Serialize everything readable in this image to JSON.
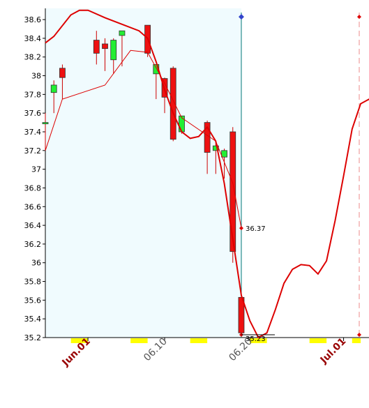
{
  "chart_data": {
    "type": "candlestick",
    "y_ticks": [
      "38.6",
      "38.4",
      "38.2",
      "38",
      "37.8",
      "37.6",
      "37.4",
      "37.2",
      "37",
      "36.8",
      "36.6",
      "36.4",
      "36.2",
      "36",
      "35.8",
      "35.6",
      "35.4",
      "35.2"
    ],
    "ylim": [
      35.2,
      38.72
    ],
    "x_domain": [
      "2025-05-27",
      "2025-07-03"
    ],
    "x_labels": [
      {
        "label": "Jun.01",
        "date": "2025-06-01",
        "color": "#990000",
        "bold": true
      },
      {
        "label": "06.10",
        "date": "2025-06-10",
        "color": "#555555",
        "bold": false
      },
      {
        "label": "06.20",
        "date": "2025-06-20",
        "color": "#555555",
        "bold": false
      },
      {
        "label": "Jul.01",
        "date": "2025-07-01",
        "color": "#990000",
        "bold": true
      }
    ],
    "weekend_bands": [
      [
        "2025-05-30",
        "2025-06-01"
      ],
      [
        "2025-06-06",
        "2025-06-08"
      ],
      [
        "2025-06-13",
        "2025-06-15"
      ],
      [
        "2025-06-20",
        "2025-06-22"
      ],
      [
        "2025-06-27",
        "2025-06-29"
      ],
      [
        "2025-07-02",
        "2025-07-03"
      ]
    ],
    "history_shade_end": "2025-06-19",
    "candles": [
      {
        "date": "2025-05-27",
        "open": 37.5,
        "high": 37.6,
        "low": 37.2,
        "close": 37.5
      },
      {
        "date": "2025-05-28",
        "open": 37.82,
        "high": 37.95,
        "low": 37.6,
        "close": 37.9
      },
      {
        "date": "2025-05-29",
        "open": 38.08,
        "high": 38.12,
        "low": 37.75,
        "close": 37.98
      },
      {
        "date": "2025-06-02",
        "open": 38.38,
        "high": 38.48,
        "low": 38.12,
        "close": 38.24
      },
      {
        "date": "2025-06-03",
        "open": 38.34,
        "high": 38.4,
        "low": 38.05,
        "close": 38.29
      },
      {
        "date": "2025-06-04",
        "open": 38.17,
        "high": 38.4,
        "low": 38.02,
        "close": 38.38
      },
      {
        "date": "2025-06-05",
        "open": 38.43,
        "high": 38.48,
        "low": 38.1,
        "close": 38.48
      },
      {
        "date": "2025-06-08",
        "open": 38.54,
        "high": 38.54,
        "low": 38.2,
        "close": 38.24
      },
      {
        "date": "2025-06-09",
        "open": 38.02,
        "high": 38.12,
        "low": 37.75,
        "close": 38.12
      },
      {
        "date": "2025-06-10",
        "open": 37.97,
        "high": 37.98,
        "low": 37.6,
        "close": 37.77
      },
      {
        "date": "2025-06-11",
        "open": 38.08,
        "high": 38.1,
        "low": 37.3,
        "close": 37.32
      },
      {
        "date": "2025-06-12",
        "open": 37.4,
        "high": 37.57,
        "low": 37.38,
        "close": 37.57
      },
      {
        "date": "2025-06-15",
        "open": 37.5,
        "high": 37.52,
        "low": 36.95,
        "close": 37.18
      },
      {
        "date": "2025-06-16",
        "open": 37.2,
        "high": 37.3,
        "low": 36.95,
        "close": 37.25
      },
      {
        "date": "2025-06-17",
        "open": 37.13,
        "high": 37.22,
        "low": 36.9,
        "close": 37.2
      },
      {
        "date": "2025-06-18",
        "open": 37.4,
        "high": 37.45,
        "low": 36.0,
        "close": 36.12
      },
      {
        "date": "2025-06-19",
        "open": 35.63,
        "high": 35.63,
        "low": 35.24,
        "close": 35.25
      }
    ],
    "series": [
      {
        "color": "#dd0000",
        "points": [
          [
            "2025-05-27",
            37.2
          ],
          [
            "2025-05-29",
            37.75
          ],
          [
            "2025-06-03",
            37.9
          ],
          [
            "2025-06-06",
            38.27
          ],
          [
            "2025-06-08",
            38.25
          ],
          [
            "2025-06-10",
            37.92
          ],
          [
            "2025-06-12",
            37.55
          ],
          [
            "2025-06-16",
            37.3
          ],
          [
            "2025-06-18",
            36.85
          ],
          [
            "2025-06-19",
            36.37
          ]
        ]
      },
      {
        "color": "#dd0000",
        "points": [
          [
            "2025-05-27",
            38.35
          ],
          [
            "2025-05-28",
            38.42
          ],
          [
            "2025-05-30",
            38.65
          ],
          [
            "2025-05-31",
            38.7
          ],
          [
            "2025-06-01",
            38.7
          ],
          [
            "2025-06-03",
            38.62
          ],
          [
            "2025-06-05",
            38.55
          ],
          [
            "2025-06-07",
            38.48
          ],
          [
            "2025-06-08",
            38.4
          ],
          [
            "2025-06-09",
            38.15
          ],
          [
            "2025-06-10",
            37.85
          ],
          [
            "2025-06-11",
            37.6
          ],
          [
            "2025-06-12",
            37.4
          ],
          [
            "2025-06-13",
            37.33
          ],
          [
            "2025-06-14",
            37.35
          ],
          [
            "2025-06-15",
            37.45
          ],
          [
            "2025-06-16",
            37.3
          ],
          [
            "2025-06-17",
            36.85
          ],
          [
            "2025-06-18",
            36.25
          ],
          [
            "2025-06-19",
            35.65
          ],
          [
            "2025-06-20",
            35.38
          ],
          [
            "2025-06-21",
            35.2
          ],
          [
            "2025-06-22",
            35.25
          ],
          [
            "2025-06-23",
            35.5
          ],
          [
            "2025-06-24",
            35.78
          ],
          [
            "2025-06-25",
            35.93
          ],
          [
            "2025-06-26",
            35.98
          ],
          [
            "2025-06-27",
            35.97
          ],
          [
            "2025-06-28",
            35.88
          ],
          [
            "2025-06-29",
            36.02
          ],
          [
            "2025-06-30",
            36.45
          ],
          [
            "2025-07-01",
            36.93
          ],
          [
            "2025-07-02",
            37.43
          ],
          [
            "2025-07-03",
            37.7
          ],
          [
            "2025-07-04",
            37.75
          ],
          [
            "2025-07-05",
            37.55
          ]
        ]
      }
    ],
    "markers": [
      {
        "date": "2025-06-19",
        "value": 36.37,
        "label": "36.37",
        "color": "#dd0000"
      },
      {
        "date": "2025-06-19",
        "value": 35.23,
        "label": "35.23",
        "color": "#dd0000"
      },
      {
        "date": "2025-06-19",
        "value": 38.63,
        "label": "",
        "color": "#3344cc"
      },
      {
        "date": "2025-07-04",
        "value": 38.63,
        "label": "",
        "color": "#dd0000"
      },
      {
        "date": "2025-07-04",
        "value": 35.23,
        "label": "",
        "color": "#dd0000"
      }
    ],
    "vertical_lines": [
      {
        "date": "2025-06-19",
        "style": "solid",
        "color": "#007777"
      },
      {
        "date": "2025-07-04",
        "style": "dashed",
        "color": "#ee8888"
      }
    ],
    "grid": false
  }
}
